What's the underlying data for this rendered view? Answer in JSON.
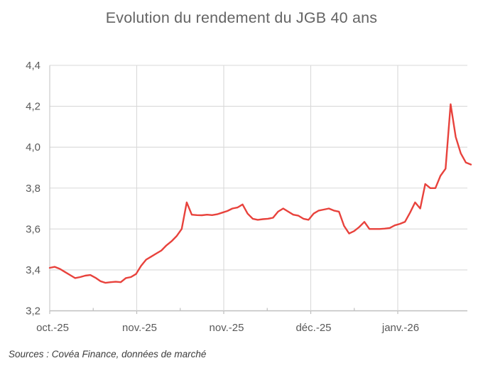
{
  "figure": {
    "title": "Evolution du rendement du JGB 40 ans",
    "source": "Sources : Covéa Finance, données de marché"
  },
  "chart_data": {
    "type": "line",
    "title": "Evolution du rendement du JGB 40 ans",
    "xlabel": "",
    "ylabel": "",
    "x_tick_labels": [
      "oct.-25",
      "nov.-25",
      "nov.-25",
      "déc.-25",
      "janv.-26"
    ],
    "y_tick_labels": [
      "4,4",
      "4,2",
      "4,0",
      "3,8",
      "3,6",
      "3,4",
      "3,2"
    ],
    "ylim": [
      3.2,
      4.4
    ],
    "y_step": 0.2,
    "grid": true,
    "legend": "none",
    "line_color": "#e8423c",
    "values": [
      3.41,
      3.415,
      3.405,
      3.39,
      3.375,
      3.36,
      3.365,
      3.372,
      3.375,
      3.362,
      3.345,
      3.337,
      3.34,
      3.342,
      3.34,
      3.36,
      3.365,
      3.38,
      3.42,
      3.45,
      3.465,
      3.48,
      3.495,
      3.52,
      3.54,
      3.565,
      3.6,
      3.73,
      3.67,
      3.668,
      3.667,
      3.67,
      3.668,
      3.672,
      3.68,
      3.688,
      3.7,
      3.705,
      3.72,
      3.675,
      3.65,
      3.645,
      3.648,
      3.65,
      3.655,
      3.685,
      3.7,
      3.685,
      3.67,
      3.665,
      3.65,
      3.645,
      3.675,
      3.69,
      3.695,
      3.7,
      3.69,
      3.685,
      3.615,
      3.578,
      3.59,
      3.61,
      3.635,
      3.6,
      3.6,
      3.6,
      3.602,
      3.605,
      3.618,
      3.625,
      3.635,
      3.68,
      3.73,
      3.7,
      3.82,
      3.8,
      3.8,
      3.86,
      3.895,
      4.21,
      4.05,
      3.97,
      3.925,
      3.915
    ],
    "source": "Sources : Covéa Finance, données de marché"
  },
  "colors": {
    "background": "#ffffff",
    "title_text": "#646464",
    "axis_label_text": "#595959",
    "gridline": "#d9d9d9",
    "axis_line": "#bfbfbf",
    "line": "#e8423c",
    "source_text": "#3c3c3c"
  }
}
